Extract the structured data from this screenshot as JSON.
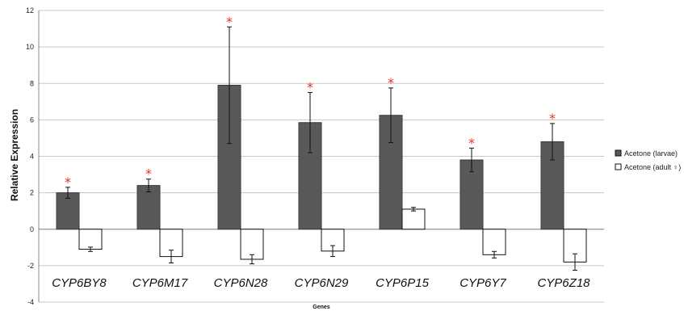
{
  "chart_data": {
    "type": "bar",
    "title": "",
    "xlabel": "Genes",
    "ylabel": "Relative Expression",
    "ylim": [
      -4,
      12
    ],
    "yticks": [
      -4,
      -2,
      0,
      2,
      4,
      6,
      8,
      10,
      12
    ],
    "grid": true,
    "legend_position": "right",
    "categories": [
      "CYP6BY8",
      "CYP6M17",
      "CYP6N28",
      "CYP6N29",
      "CYP6P15",
      "CYP6Y7",
      "CYP6Z18"
    ],
    "series": [
      {
        "name": "Acetone (larvae)",
        "color": "#595959",
        "values": [
          2.0,
          2.4,
          7.9,
          5.85,
          6.25,
          3.8,
          4.8
        ],
        "errors": [
          0.3,
          0.35,
          3.2,
          1.65,
          1.5,
          0.65,
          1.0
        ],
        "significance": [
          "*",
          "*",
          "*",
          "*",
          "*",
          "*",
          "*"
        ]
      },
      {
        "name": "Acetone (adult ♀)",
        "color": "#ffffff",
        "values": [
          -1.1,
          -1.5,
          -1.65,
          -1.2,
          1.1,
          -1.4,
          -1.8
        ],
        "errors": [
          0.12,
          0.35,
          0.25,
          0.3,
          0.1,
          0.18,
          0.45
        ],
        "significance": [
          "",
          "",
          "",
          "",
          "",
          "",
          ""
        ]
      }
    ]
  }
}
